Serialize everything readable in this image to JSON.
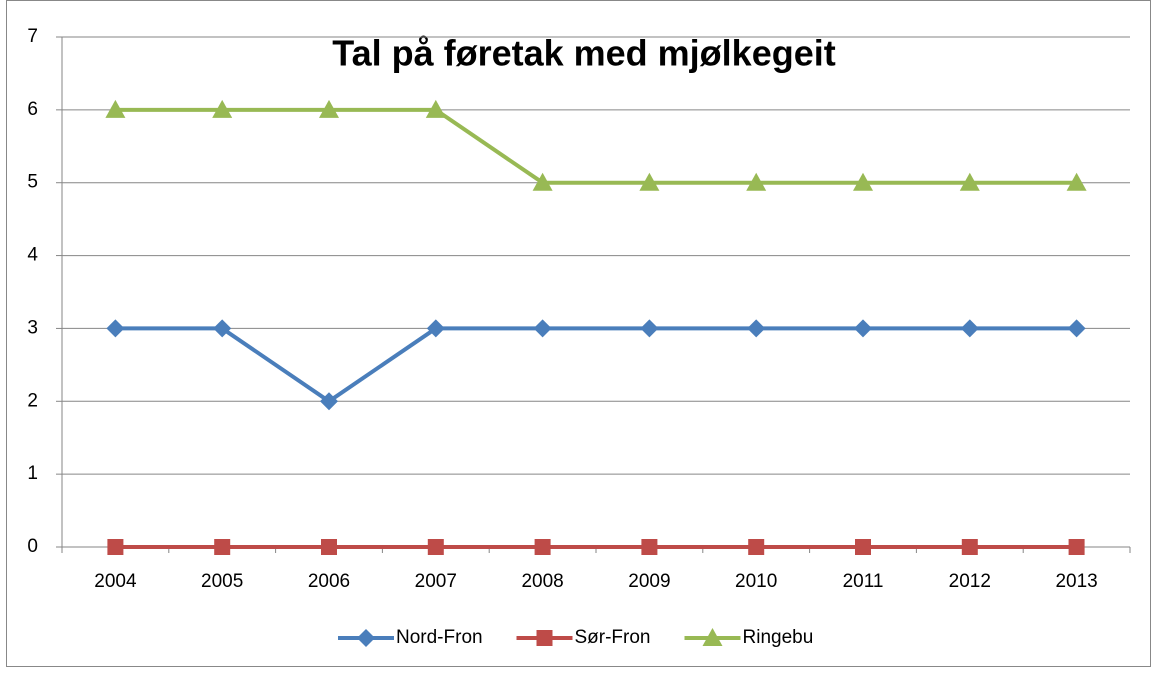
{
  "chart_data": {
    "type": "line",
    "title": "Tal på føretak med mjølkegeit",
    "categories": [
      "2004",
      "2005",
      "2006",
      "2007",
      "2008",
      "2009",
      "2010",
      "2011",
      "2012",
      "2013"
    ],
    "series": [
      {
        "name": "Nord-Fron",
        "color": "#4a7ebb",
        "marker": "diamond",
        "values": [
          3,
          3,
          2,
          3,
          3,
          3,
          3,
          3,
          3,
          3
        ]
      },
      {
        "name": "Sør-Fron",
        "color": "#be4b48",
        "marker": "square",
        "values": [
          0,
          0,
          0,
          0,
          0,
          0,
          0,
          0,
          0,
          0
        ]
      },
      {
        "name": "Ringebu",
        "color": "#98b954",
        "marker": "triangle",
        "values": [
          6,
          6,
          6,
          6,
          5,
          5,
          5,
          5,
          5,
          5
        ]
      }
    ],
    "ylim": [
      0,
      7
    ],
    "yticks": [
      0,
      1,
      2,
      3,
      4,
      5,
      6,
      7
    ],
    "grid": true,
    "legend": "bottom"
  }
}
